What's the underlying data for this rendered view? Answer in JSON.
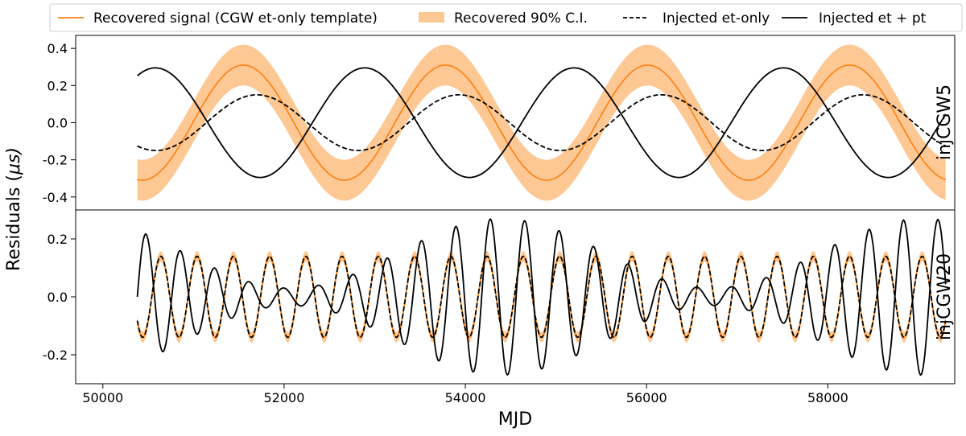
{
  "chart_data": {
    "type": "line",
    "xlabel": "MJD",
    "ylabel_prefix": "Residuals (",
    "ylabel_mu": "μ",
    "ylabel_suffix": "s)",
    "xlim": [
      49700,
      59400
    ],
    "xticks": [
      50000,
      52000,
      54000,
      56000,
      58000
    ],
    "legend": {
      "placement": "top",
      "entries": [
        {
          "label": "Recovered signal (CGW et-only template)",
          "style": "line",
          "color": "#ff7f0e"
        },
        {
          "label": "Recovered 90% C.I.",
          "style": "band",
          "color": "#fdc894"
        },
        {
          "label": "Injected et-only",
          "style": "dashed",
          "color": "#000000"
        },
        {
          "label": "Injected et + pt",
          "style": "solid",
          "color": "#000000"
        }
      ]
    },
    "panels": [
      {
        "id": "injCGW5",
        "label": "injCGW5",
        "ylim": [
          -0.47,
          0.47
        ],
        "yticks": [
          -0.4,
          -0.2,
          0.0,
          0.2,
          0.4
        ],
        "series": [
          {
            "name": "Recovered signal (CGW et-only template)",
            "mjd_start": 50380,
            "mjd_end": 59300,
            "mean": 0.0,
            "amplitude": 0.31,
            "period": 2230,
            "peak_mjd": 51550
          },
          {
            "name": "Recovered 90% C.I.",
            "mjd_start": 50380,
            "mjd_end": 59300,
            "mean": 0.0,
            "amplitude": 0.31,
            "period": 2230,
            "peak_mjd": 51550,
            "half_width": 0.11
          },
          {
            "name": "Injected et-only",
            "mjd_start": 50380,
            "mjd_end": 59300,
            "mean": 0.0,
            "amplitude": 0.15,
            "period": 2230,
            "peak_mjd": 51700
          },
          {
            "name": "Injected et + pt",
            "mjd_start": 50380,
            "mjd_end": 59300,
            "mean": 0.0,
            "amplitude": 0.295,
            "period": 2310,
            "peak_mjd": 50580
          }
        ]
      },
      {
        "id": "injCGW20",
        "label": "injCGW20",
        "ylim": [
          -0.3,
          0.3
        ],
        "yticks": [
          -0.2,
          0.0,
          0.2
        ],
        "series": [
          {
            "name": "Recovered signal (CGW et-only template)",
            "mjd_start": 50380,
            "mjd_end": 59300,
            "mean": 0.0,
            "amplitude": 0.14,
            "period": 400,
            "peak_mjd": 50640
          },
          {
            "name": "Recovered 90% C.I.",
            "mjd_start": 50380,
            "mjd_end": 59300,
            "mean": 0.0,
            "amplitude": 0.14,
            "period": 400,
            "peak_mjd": 50640,
            "half_width": 0.018
          },
          {
            "name": "Injected et-only",
            "mjd_start": 50380,
            "mjd_end": 59300,
            "mean": 0.0,
            "amplitude": 0.14,
            "period": 400,
            "peak_mjd": 50640
          },
          {
            "name": "Injected et + pt",
            "mjd_start": 50380,
            "mjd_end": 59300,
            "mean": 0.0,
            "carrier_period": 380,
            "carrier_peak_mjd": 50475,
            "envelope_mean": 0.15,
            "envelope_amplitude": 0.12,
            "envelope_period": 4650,
            "envelope_peak_mjd": 54400
          }
        ]
      }
    ]
  }
}
